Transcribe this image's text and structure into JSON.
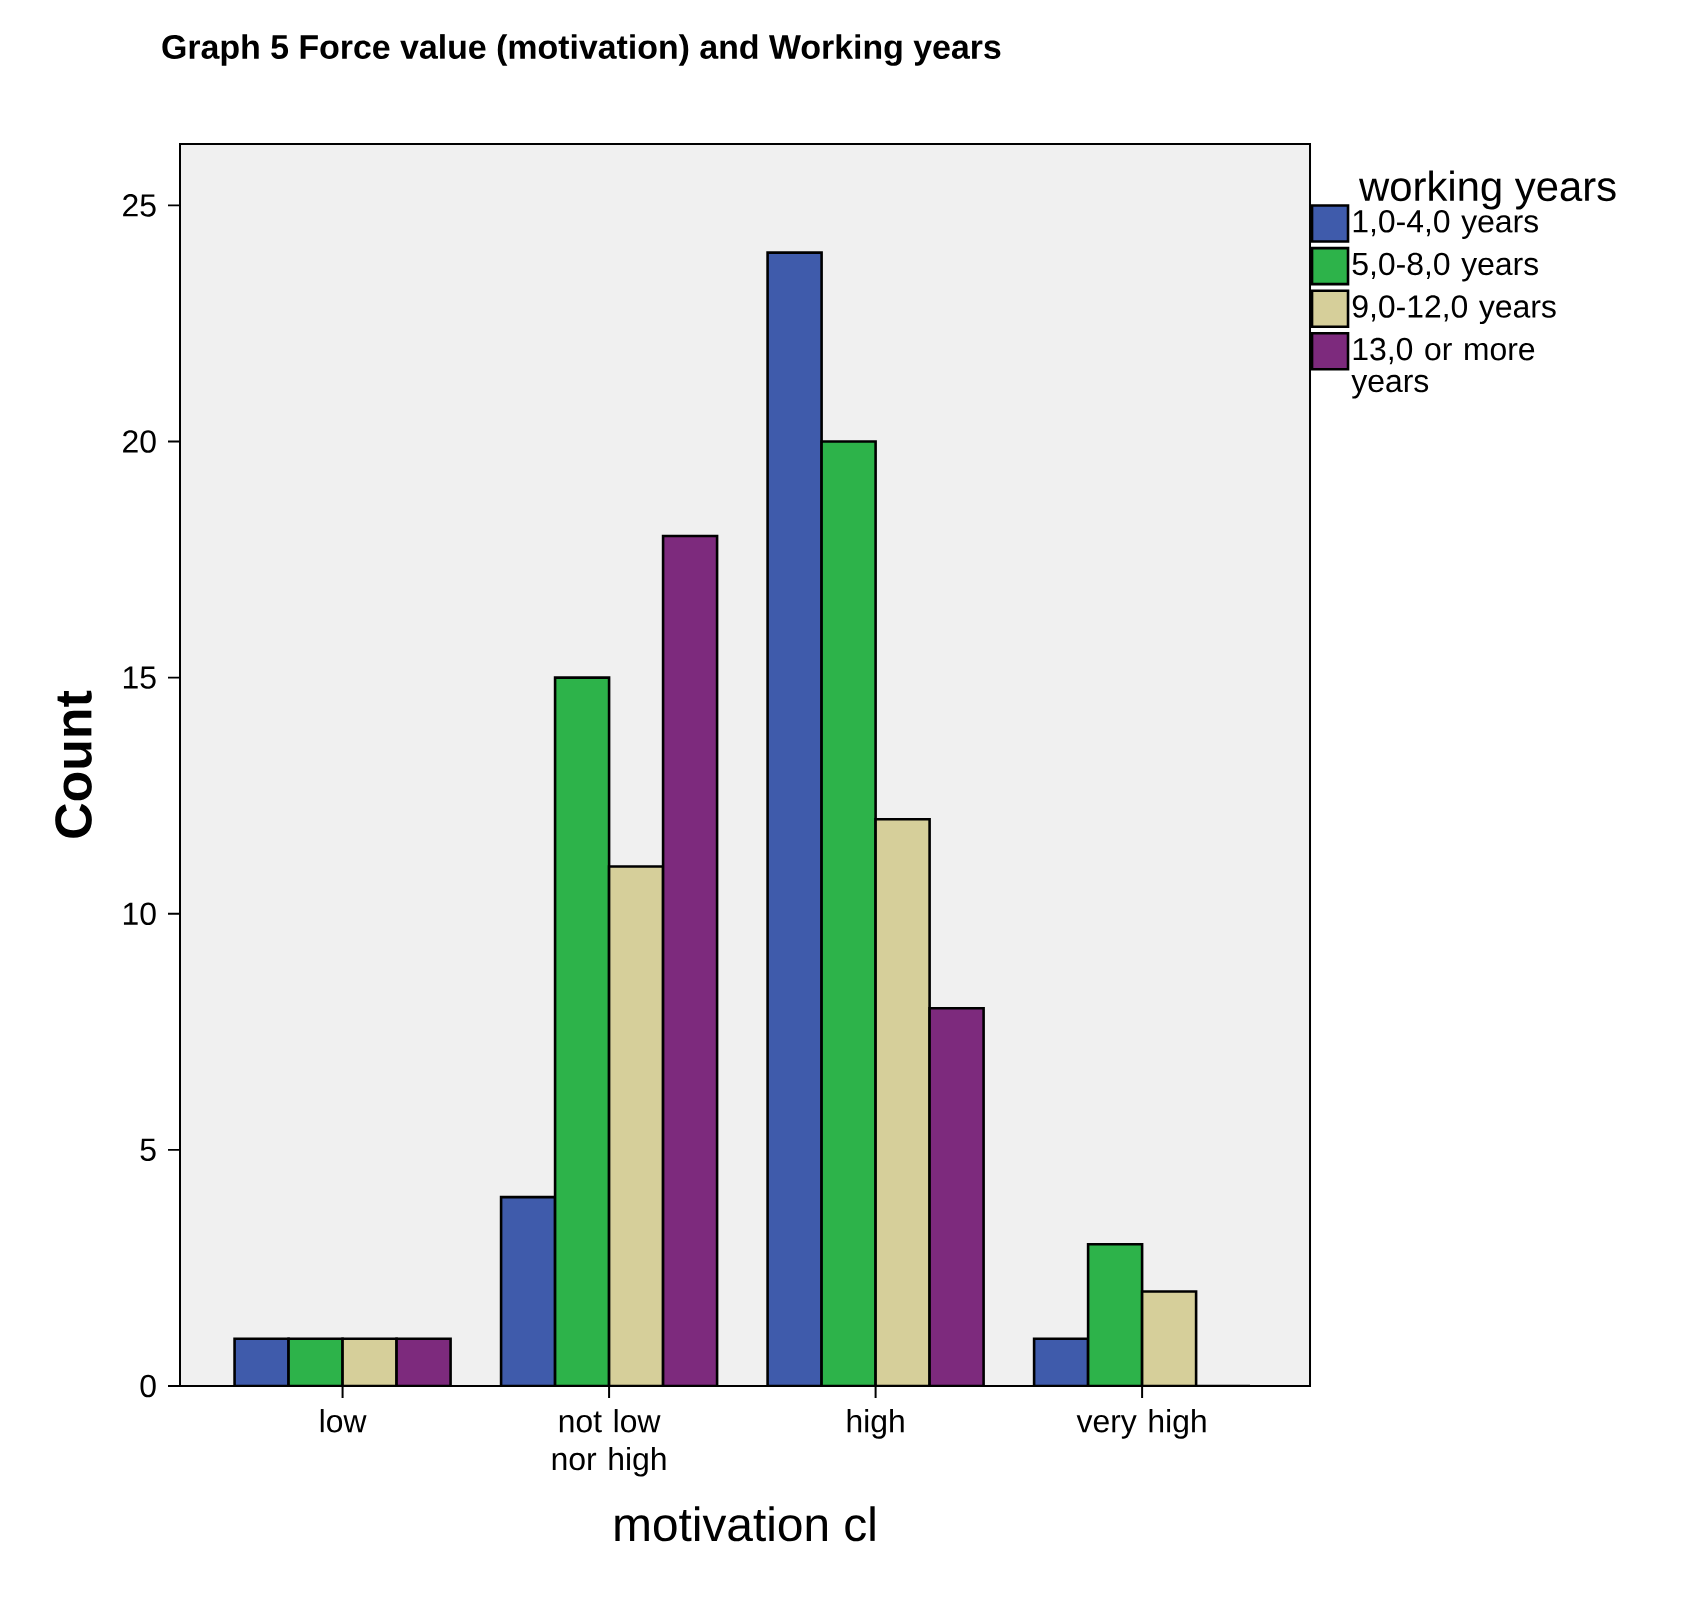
{
  "chart_data": {
    "type": "bar",
    "title": "Graph 5   Force value (motivation) and Working years",
    "xlabel": "motivation cl",
    "ylabel": "Count",
    "legend_title": "working years",
    "categories": [
      "low",
      "not low nor high",
      "high",
      "very high"
    ],
    "series": [
      {
        "name": "1,0-4,0 years",
        "color": "#3f5bab",
        "values": [
          1,
          4,
          24,
          1
        ]
      },
      {
        "name": "5,0-8,0 years",
        "color": "#2db34a",
        "values": [
          1,
          15,
          20,
          3
        ]
      },
      {
        "name": "9,0-12,0 years",
        "color": "#d6cf9a",
        "values": [
          1,
          11,
          12,
          2
        ]
      },
      {
        "name": "13,0 or more years",
        "color": "#7d2a7d",
        "values": [
          1,
          18,
          8,
          0
        ]
      }
    ],
    "ylim": [
      0,
      26.3
    ],
    "yticks": [
      0,
      5,
      10,
      15,
      20,
      25
    ],
    "legend": "top right"
  }
}
